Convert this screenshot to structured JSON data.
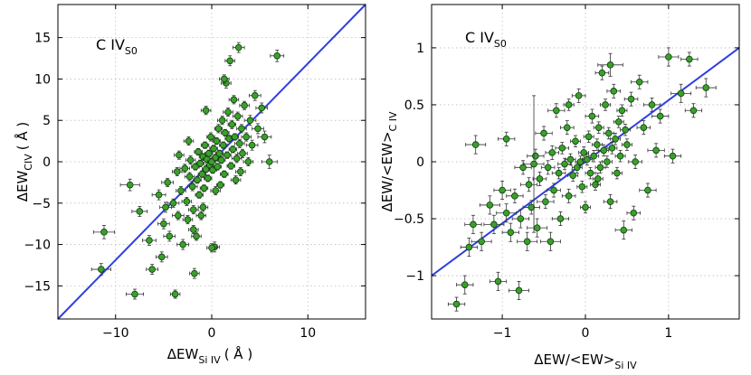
{
  "chart_data": [
    {
      "type": "scatter",
      "panel_label": "C IV",
      "panel_label_sub": "S0",
      "xlabel_main": "ΔEW",
      "xlabel_sub": "Si IV",
      "xlabel_unit": "( Å )",
      "ylabel_main": "ΔEW",
      "ylabel_sub": "CIV",
      "ylabel_unit": "( Å )",
      "xlim": [
        -16,
        16
      ],
      "ylim": [
        -19,
        19
      ],
      "xticks": [
        -10,
        0,
        10
      ],
      "xtick_labels": [
        "−10",
        "0",
        "10"
      ],
      "yticks": [
        -15,
        -10,
        -5,
        0,
        5,
        10,
        15
      ],
      "ytick_labels": [
        "−15",
        "−10",
        "−5",
        "0",
        "5",
        "10",
        "15"
      ],
      "grid": true,
      "line": {
        "x": [
          -16,
          16
        ],
        "y": [
          -19,
          19
        ]
      },
      "points": [
        [
          -11.5,
          -13.0,
          1.0,
          0.7
        ],
        [
          -11.2,
          -8.5,
          1.1,
          0.8
        ],
        [
          -8.5,
          -2.8,
          1.0,
          0.7
        ],
        [
          -8.0,
          -16.0,
          0.9,
          0.6
        ],
        [
          -7.5,
          -6.0,
          0.8,
          0.6
        ],
        [
          -6.5,
          -9.5,
          0.7,
          0.6
        ],
        [
          -6.2,
          -13.0,
          0.6,
          0.6
        ],
        [
          -5.5,
          -4.0,
          0.7,
          0.6
        ],
        [
          -5.2,
          -11.5,
          0.6,
          0.6
        ],
        [
          -5.0,
          -7.5,
          0.6,
          0.6
        ],
        [
          -4.6,
          -2.5,
          0.6,
          0.5
        ],
        [
          -4.4,
          -9.0,
          0.6,
          0.6
        ],
        [
          -4.0,
          -5.0,
          0.6,
          0.5
        ],
        [
          -3.8,
          -16.0,
          0.5,
          0.5
        ],
        [
          -3.6,
          -1.2,
          0.5,
          0.5
        ],
        [
          -3.5,
          -6.5,
          0.6,
          0.5
        ],
        [
          -3.2,
          -3.5,
          0.5,
          0.5
        ],
        [
          -3.0,
          -10.0,
          0.6,
          0.6
        ],
        [
          -2.8,
          -0.8,
          0.5,
          0.5
        ],
        [
          -2.6,
          -4.8,
          0.5,
          0.5
        ],
        [
          -2.5,
          -7.0,
          0.5,
          0.5
        ],
        [
          -2.3,
          -1.8,
          0.5,
          0.5
        ],
        [
          -2.2,
          0.2,
          0.5,
          0.5
        ],
        [
          -2.0,
          -3.0,
          0.5,
          0.5
        ],
        [
          -1.9,
          -5.8,
          0.5,
          0.5
        ],
        [
          -1.8,
          -13.5,
          0.5,
          0.6
        ],
        [
          -1.7,
          -0.6,
          0.4,
          0.4
        ],
        [
          -1.6,
          -9.0,
          0.5,
          0.5
        ],
        [
          -1.5,
          -2.2,
          0.4,
          0.4
        ],
        [
          -1.4,
          1.2,
          0.4,
          0.4
        ],
        [
          -1.3,
          -4.0,
          0.4,
          0.4
        ],
        [
          -1.2,
          -0.2,
          0.4,
          0.4
        ],
        [
          -1.1,
          -6.5,
          0.5,
          0.5
        ],
        [
          -1.0,
          -1.5,
          0.4,
          0.4
        ],
        [
          -0.9,
          0.6,
          0.4,
          0.4
        ],
        [
          -0.8,
          -3.2,
          0.4,
          0.4
        ],
        [
          -0.7,
          2.0,
          0.4,
          0.4
        ],
        [
          -0.6,
          -0.9,
          0.4,
          0.4
        ],
        [
          -0.5,
          0.3,
          0.4,
          0.4
        ],
        [
          -0.4,
          -2.0,
          0.4,
          0.4
        ],
        [
          -0.3,
          1.0,
          0.4,
          0.4
        ],
        [
          -0.2,
          -0.4,
          0.4,
          0.4
        ],
        [
          -0.1,
          3.0,
          0.4,
          0.5
        ],
        [
          0.0,
          0.0,
          0.4,
          0.4
        ],
        [
          0.1,
          -1.0,
          0.4,
          0.4
        ],
        [
          0.2,
          1.6,
          0.4,
          0.4
        ],
        [
          0.3,
          -10.3,
          0.5,
          0.6
        ],
        [
          0.4,
          0.5,
          0.4,
          0.4
        ],
        [
          0.5,
          2.5,
          0.4,
          0.4
        ],
        [
          0.6,
          -0.6,
          0.4,
          0.4
        ],
        [
          0.7,
          4.0,
          0.4,
          0.5
        ],
        [
          0.8,
          1.0,
          0.4,
          0.4
        ],
        [
          0.9,
          -2.8,
          0.4,
          0.4
        ],
        [
          1.0,
          0.2,
          0.4,
          0.4
        ],
        [
          1.1,
          5.0,
          0.5,
          0.5
        ],
        [
          1.2,
          2.0,
          0.4,
          0.4
        ],
        [
          1.3,
          -1.5,
          0.4,
          0.4
        ],
        [
          1.4,
          3.5,
          0.4,
          0.4
        ],
        [
          1.5,
          9.5,
          0.5,
          0.6
        ],
        [
          1.6,
          0.8,
          0.4,
          0.4
        ],
        [
          1.7,
          6.0,
          0.5,
          0.5
        ],
        [
          1.8,
          2.8,
          0.4,
          0.4
        ],
        [
          1.9,
          12.2,
          0.5,
          0.6
        ],
        [
          2.0,
          -0.5,
          0.4,
          0.4
        ],
        [
          2.1,
          4.5,
          0.4,
          0.5
        ],
        [
          2.2,
          1.5,
          0.4,
          0.4
        ],
        [
          2.3,
          7.5,
          0.5,
          0.5
        ],
        [
          2.4,
          3.0,
          0.4,
          0.4
        ],
        [
          2.6,
          0.4,
          0.5,
          0.5
        ],
        [
          2.7,
          5.5,
          0.5,
          0.5
        ],
        [
          2.8,
          13.8,
          0.6,
          0.6
        ],
        [
          2.9,
          2.2,
          0.5,
          0.5
        ],
        [
          3.0,
          -1.2,
          0.5,
          0.5
        ],
        [
          3.1,
          4.0,
          0.5,
          0.5
        ],
        [
          3.2,
          1.0,
          0.5,
          0.5
        ],
        [
          3.4,
          6.8,
          0.5,
          0.5
        ],
        [
          3.6,
          3.0,
          0.5,
          0.5
        ],
        [
          3.8,
          0.0,
          0.5,
          0.5
        ],
        [
          4.0,
          5.0,
          0.6,
          0.6
        ],
        [
          4.2,
          2.0,
          0.6,
          0.6
        ],
        [
          4.5,
          8.0,
          0.6,
          0.6
        ],
        [
          4.8,
          4.0,
          0.6,
          0.6
        ],
        [
          5.2,
          6.5,
          0.6,
          0.6
        ],
        [
          5.5,
          3.0,
          0.7,
          0.7
        ],
        [
          6.0,
          0.0,
          0.8,
          0.8
        ],
        [
          6.8,
          12.8,
          0.7,
          0.7
        ],
        [
          -2.4,
          2.5,
          0.5,
          0.5
        ],
        [
          -1.9,
          -8.2,
          0.5,
          0.5
        ],
        [
          -0.9,
          -5.5,
          0.5,
          0.5
        ],
        [
          0.4,
          -3.5,
          0.5,
          0.5
        ],
        [
          1.3,
          10.0,
          0.5,
          0.5
        ],
        [
          0.0,
          -10.4,
          0.5,
          0.5
        ],
        [
          -4.8,
          -5.5,
          0.6,
          0.6
        ],
        [
          -3.4,
          0.8,
          0.5,
          0.5
        ],
        [
          -0.6,
          6.2,
          0.5,
          0.5
        ],
        [
          2.5,
          -2.2,
          0.5,
          0.5
        ]
      ]
    },
    {
      "type": "scatter",
      "panel_label": "C IV",
      "panel_label_sub": "S0",
      "xlabel_main": "ΔEW/<EW>",
      "xlabel_sub": "Si IV",
      "ylabel_main": "ΔEW/<EW>",
      "ylabel_sub": "C IV",
      "xlim": [
        -1.85,
        1.85
      ],
      "ylim": [
        -1.38,
        1.38
      ],
      "xticks": [
        -1,
        0,
        1
      ],
      "xtick_labels": [
        "−1",
        "0",
        "1"
      ],
      "yticks": [
        -1,
        -0.5,
        0,
        0.5,
        1
      ],
      "ytick_labels": [
        "−1",
        "−0.5",
        "0",
        "0.5",
        "1"
      ],
      "grid": true,
      "line": {
        "x": [
          -1.85,
          1.85
        ],
        "y": [
          -1.0,
          1.0
        ]
      },
      "points": [
        [
          -1.55,
          -1.25,
          0.1,
          0.06
        ],
        [
          -1.45,
          -1.08,
          0.1,
          0.08
        ],
        [
          -1.4,
          -0.75,
          0.1,
          0.08
        ],
        [
          -1.35,
          -0.55,
          0.1,
          0.08
        ],
        [
          -1.32,
          0.15,
          0.12,
          0.08
        ],
        [
          -1.25,
          -0.7,
          0.12,
          0.08
        ],
        [
          -1.15,
          -0.38,
          0.12,
          0.08
        ],
        [
          -1.1,
          -0.55,
          0.12,
          0.08
        ],
        [
          -1.05,
          -1.05,
          0.1,
          0.08
        ],
        [
          -1.0,
          -0.25,
          0.1,
          0.08
        ],
        [
          -0.95,
          -0.45,
          0.12,
          0.08
        ],
        [
          -0.9,
          -0.62,
          0.1,
          0.08
        ],
        [
          -0.85,
          -0.3,
          0.1,
          0.06
        ],
        [
          -0.8,
          -1.13,
          0.12,
          0.08
        ],
        [
          -0.78,
          -0.5,
          0.1,
          0.08
        ],
        [
          -0.75,
          -0.05,
          0.1,
          0.06
        ],
        [
          -0.7,
          -0.7,
          0.12,
          0.08
        ],
        [
          -0.68,
          -0.2,
          0.1,
          0.06
        ],
        [
          -0.65,
          -0.4,
          0.1,
          0.06
        ],
        [
          -0.6,
          0.05,
          0.1,
          0.06
        ],
        [
          -0.58,
          -0.58,
          0.12,
          0.08
        ],
        [
          -0.55,
          -0.15,
          0.08,
          0.06
        ],
        [
          -0.5,
          0.25,
          0.1,
          0.06
        ],
        [
          -0.48,
          -0.35,
          0.1,
          0.06
        ],
        [
          -0.45,
          -0.05,
          0.08,
          0.06
        ],
        [
          -0.42,
          -0.7,
          0.12,
          0.08
        ],
        [
          -0.4,
          0.08,
          0.08,
          0.06
        ],
        [
          -0.38,
          -0.25,
          0.08,
          0.06
        ],
        [
          -0.35,
          0.45,
          0.1,
          0.06
        ],
        [
          -0.32,
          -0.1,
          0.08,
          0.05
        ],
        [
          -0.3,
          -0.5,
          0.1,
          0.06
        ],
        [
          -0.28,
          0.12,
          0.08,
          0.05
        ],
        [
          -0.25,
          -0.02,
          0.08,
          0.05
        ],
        [
          -0.22,
          0.3,
          0.08,
          0.06
        ],
        [
          -0.2,
          -0.3,
          0.08,
          0.06
        ],
        [
          -0.18,
          0.02,
          0.06,
          0.05
        ],
        [
          -0.15,
          -0.12,
          0.06,
          0.05
        ],
        [
          -0.12,
          0.18,
          0.06,
          0.05
        ],
        [
          -0.1,
          -0.05,
          0.06,
          0.05
        ],
        [
          -0.08,
          0.58,
          0.08,
          0.06
        ],
        [
          -0.06,
          0.0,
          0.06,
          0.05
        ],
        [
          -0.04,
          -0.22,
          0.06,
          0.05
        ],
        [
          -0.02,
          0.08,
          0.06,
          0.05
        ],
        [
          0.0,
          -0.4,
          0.06,
          0.05
        ],
        [
          0.02,
          0.02,
          0.06,
          0.05
        ],
        [
          0.04,
          0.22,
          0.06,
          0.05
        ],
        [
          0.06,
          -0.1,
          0.06,
          0.05
        ],
        [
          0.08,
          0.4,
          0.08,
          0.06
        ],
        [
          0.1,
          0.05,
          0.06,
          0.05
        ],
        [
          0.12,
          -0.2,
          0.06,
          0.05
        ],
        [
          0.14,
          0.15,
          0.06,
          0.05
        ],
        [
          0.16,
          0.3,
          0.06,
          0.05
        ],
        [
          0.18,
          -0.05,
          0.06,
          0.05
        ],
        [
          0.2,
          0.78,
          0.08,
          0.06
        ],
        [
          0.22,
          0.1,
          0.06,
          0.05
        ],
        [
          0.24,
          0.5,
          0.06,
          0.05
        ],
        [
          0.26,
          0.0,
          0.06,
          0.05
        ],
        [
          0.28,
          0.25,
          0.06,
          0.05
        ],
        [
          0.3,
          -0.35,
          0.08,
          0.06
        ],
        [
          0.32,
          0.12,
          0.06,
          0.05
        ],
        [
          0.34,
          0.62,
          0.08,
          0.06
        ],
        [
          0.36,
          0.2,
          0.06,
          0.05
        ],
        [
          0.38,
          -0.1,
          0.06,
          0.05
        ],
        [
          0.4,
          0.35,
          0.06,
          0.05
        ],
        [
          0.42,
          0.05,
          0.06,
          0.05
        ],
        [
          0.44,
          0.45,
          0.06,
          0.05
        ],
        [
          0.46,
          -0.6,
          0.1,
          0.08
        ],
        [
          0.48,
          0.28,
          0.06,
          0.05
        ],
        [
          0.5,
          0.15,
          0.06,
          0.05
        ],
        [
          0.55,
          0.55,
          0.08,
          0.06
        ],
        [
          0.6,
          0.0,
          0.08,
          0.06
        ],
        [
          0.65,
          0.7,
          0.1,
          0.06
        ],
        [
          0.7,
          0.3,
          0.08,
          0.06
        ],
        [
          0.75,
          -0.25,
          0.1,
          0.06
        ],
        [
          0.8,
          0.5,
          0.1,
          0.06
        ],
        [
          0.85,
          0.1,
          0.1,
          0.06
        ],
        [
          0.9,
          0.4,
          0.1,
          0.06
        ],
        [
          1.0,
          0.92,
          0.12,
          0.08
        ],
        [
          1.05,
          0.05,
          0.1,
          0.06
        ],
        [
          1.15,
          0.6,
          0.12,
          0.08
        ],
        [
          1.25,
          0.9,
          0.1,
          0.06
        ],
        [
          1.3,
          0.45,
          0.1,
          0.06
        ],
        [
          1.45,
          0.65,
          0.12,
          0.08
        ],
        [
          -0.62,
          -0.02,
          0.12,
          0.6
        ],
        [
          0.3,
          0.85,
          0.15,
          0.1
        ],
        [
          -0.95,
          0.2,
          0.1,
          0.06
        ],
        [
          0.15,
          -0.15,
          0.06,
          0.05
        ],
        [
          0.58,
          -0.45,
          0.08,
          0.06
        ],
        [
          -0.2,
          0.5,
          0.06,
          0.05
        ]
      ]
    }
  ]
}
